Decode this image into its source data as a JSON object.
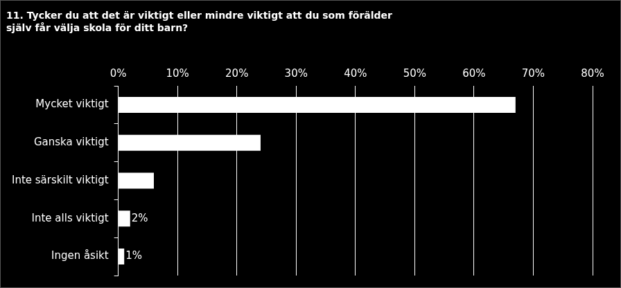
{
  "chart_data": {
    "type": "bar",
    "orientation": "horizontal",
    "title": [
      "11. Tycker du att det är viktigt eller mindre viktigt att du som förälder",
      "själv får välja skola för ditt barn?"
    ],
    "categories": [
      "Mycket viktigt",
      "Ganska viktigt",
      "Inte särskilt viktigt",
      "Inte alls viktigt",
      "Ingen åsikt"
    ],
    "values": [
      67,
      24,
      6,
      2,
      1
    ],
    "value_labels": [
      null,
      null,
      null,
      "2%",
      "1%"
    ],
    "data_labels": true,
    "color": "#ffffff",
    "xlim": [
      0,
      80
    ],
    "xticks": [
      {
        "value": 0,
        "label": "0%"
      },
      {
        "value": 10,
        "label": "10%"
      },
      {
        "value": 20,
        "label": "20%"
      },
      {
        "value": 30,
        "label": "30%"
      },
      {
        "value": 40,
        "label": "40%"
      },
      {
        "value": 50,
        "label": "50%"
      },
      {
        "value": 60,
        "label": "60%"
      },
      {
        "value": 70,
        "label": "70%"
      },
      {
        "value": 80,
        "label": "80%"
      }
    ],
    "grid": true
  }
}
